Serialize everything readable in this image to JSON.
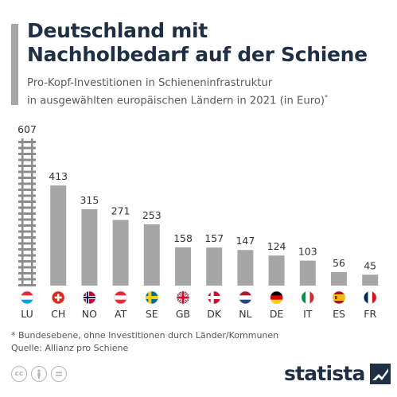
{
  "header": {
    "title_line1": "Deutschland mit",
    "title_line2": "Nachholbedarf auf der Schiene",
    "subtitle_line1": "Pro-Kopf-Investitionen in Schieneninfrastruktur",
    "subtitle_line2": "in ausgewählten europäischen Ländern in 2021 (in Euro)",
    "subtitle_marker": "*"
  },
  "chart_data": {
    "type": "bar",
    "title": "Deutschland mit Nachholbedarf auf der Schiene",
    "subtitle": "Pro-Kopf-Investitionen in Schieneninfrastruktur in ausgewählten europäischen Ländern in 2021 (in Euro)*",
    "categories": [
      "LU",
      "CH",
      "NO",
      "AT",
      "SE",
      "GB",
      "DK",
      "NL",
      "DE",
      "IT",
      "ES",
      "FR"
    ],
    "values": [
      607,
      413,
      315,
      271,
      253,
      158,
      157,
      147,
      124,
      103,
      56,
      45
    ],
    "ylim": [
      0,
      607
    ],
    "grid": false,
    "bar_color": "#a6a6a6",
    "highlight_first_as_track": true,
    "flags": [
      "flag-luxembourg",
      "flag-switzerland",
      "flag-norway",
      "flag-austria",
      "flag-sweden",
      "flag-united-kingdom",
      "flag-denmark",
      "flag-netherlands",
      "flag-germany",
      "flag-italy",
      "flag-spain",
      "flag-france"
    ]
  },
  "footer": {
    "footnote": "* Bundesebene, ohne Investitionen durch Länder/Kommunen",
    "source": "Quelle: Allianz pro Schiene",
    "brand": "statista",
    "license_icons": [
      "cc-icon",
      "attribution-icon",
      "no-derivatives-icon"
    ]
  },
  "colors": {
    "title": "#1f2f44",
    "bar": "#a6a6a6",
    "track_rail": "#8c8c8c",
    "brand": "#1f2f44"
  }
}
